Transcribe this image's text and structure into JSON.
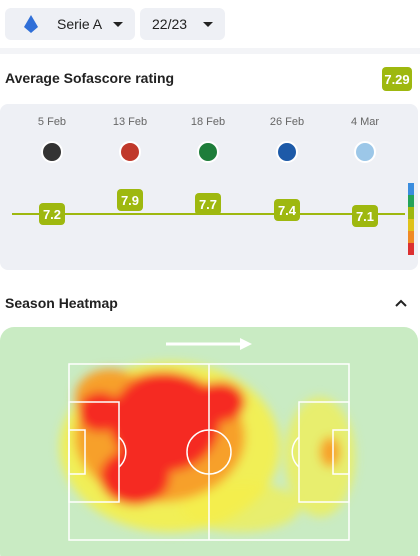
{
  "filters": {
    "league": "Serie A",
    "season": "22/23"
  },
  "rating": {
    "title": "Average Sofascore rating",
    "average": 7.29,
    "matches": [
      {
        "date": "5 Feb",
        "rating": 7.2
      },
      {
        "date": "13 Feb",
        "rating": 7.9
      },
      {
        "date": "18 Feb",
        "rating": 7.7
      },
      {
        "date": "26 Feb",
        "rating": 7.4
      },
      {
        "date": "4 Mar",
        "rating": 7.1
      }
    ]
  },
  "heatmap": {
    "title": "Season Heatmap"
  }
}
